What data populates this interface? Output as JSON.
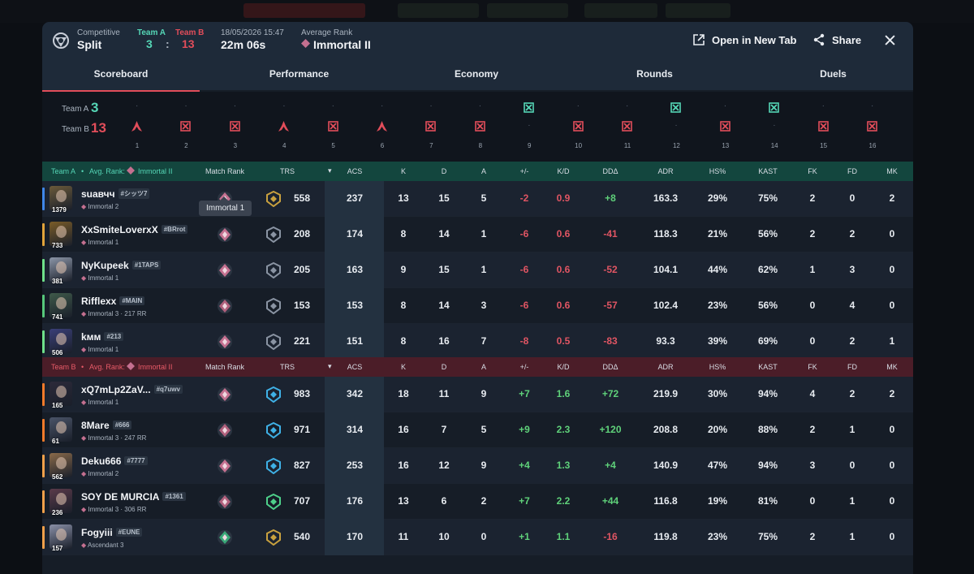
{
  "header": {
    "mode": "Competitive",
    "map": "Split",
    "team_a_label": "Team A",
    "team_b_label": "Team B",
    "team_a_score": "3",
    "team_b_score": "13",
    "score_sep": ":",
    "date": "18/05/2026 15:47",
    "duration": "22m 06s",
    "avg_rank_label": "Average Rank",
    "avg_rank": "Immortal II",
    "open_new_tab": "Open in New Tab",
    "share": "Share"
  },
  "tabs": [
    "Scoreboard",
    "Performance",
    "Economy",
    "Rounds",
    "Duels"
  ],
  "rounds": {
    "team_a_label": "Team A",
    "team_a_score": "3",
    "team_b_label": "Team B",
    "team_b_score": "13",
    "results": [
      {
        "n": "1",
        "winner": "B",
        "icon": "defuse-icon"
      },
      {
        "n": "2",
        "winner": "B",
        "icon": "elimination-icon"
      },
      {
        "n": "3",
        "winner": "B",
        "icon": "elimination-icon"
      },
      {
        "n": "4",
        "winner": "B",
        "icon": "defuse-icon"
      },
      {
        "n": "5",
        "winner": "B",
        "icon": "elimination-icon"
      },
      {
        "n": "6",
        "winner": "B",
        "icon": "defuse-icon"
      },
      {
        "n": "7",
        "winner": "B",
        "icon": "elimination-icon"
      },
      {
        "n": "8",
        "winner": "B",
        "icon": "elimination-icon"
      },
      {
        "n": "9",
        "winner": "A",
        "icon": "elimination-icon"
      },
      {
        "n": "10",
        "winner": "B",
        "icon": "elimination-icon"
      },
      {
        "n": "11",
        "winner": "B",
        "icon": "elimination-icon"
      },
      {
        "n": "12",
        "winner": "A",
        "icon": "elimination-icon"
      },
      {
        "n": "13",
        "winner": "B",
        "icon": "elimination-icon"
      },
      {
        "n": "14",
        "winner": "A",
        "icon": "elimination-icon"
      },
      {
        "n": "15",
        "winner": "B",
        "icon": "elimination-icon"
      },
      {
        "n": "16",
        "winner": "B",
        "icon": "elimination-icon"
      }
    ]
  },
  "columns": [
    "Match Rank",
    "TRS",
    "ACS",
    "K",
    "D",
    "A",
    "+/-",
    "K/D",
    "DDΔ",
    "ADR",
    "HS%",
    "KAST",
    "FK",
    "FD",
    "MK"
  ],
  "team_a": {
    "title": "Team A",
    "avg_rank_prefix": "Avg. Rank:",
    "avg_rank": "Immortal II",
    "color": "#16463e",
    "players": [
      {
        "name": "suaвчч",
        "tag": "#シッツ7",
        "rank": "Immortal 2",
        "level": "1379",
        "bar": "#3f86e8",
        "avatar": "#6b5a3a",
        "trs": "558",
        "acs": "237",
        "k": "13",
        "d": "15",
        "a": "5",
        "pm": "-2",
        "kd": "0.9",
        "dd": "+8",
        "adr": "163.3",
        "hs": "29%",
        "kast": "75%",
        "fk": "2",
        "fd": "0",
        "mk": "2",
        "badge": "#c9a13f",
        "mrank": "#c47090"
      },
      {
        "name": "XxSmiteLoverxX",
        "tag": "#BRrot",
        "rank": "Immortal 1",
        "level": "733",
        "bar": "#e0a33a",
        "avatar": "#7a5c28",
        "trs": "208",
        "acs": "174",
        "k": "8",
        "d": "14",
        "a": "1",
        "pm": "-6",
        "kd": "0.6",
        "dd": "-41",
        "adr": "118.3",
        "hs": "21%",
        "kast": "56%",
        "fk": "2",
        "fd": "2",
        "mk": "0",
        "badge": "#8a94a3",
        "mrank": "#c47090"
      },
      {
        "name": "NyKupeek",
        "tag": "#1TAPS",
        "rank": "Immortal 1",
        "level": "381",
        "bar": "#6ee08a",
        "avatar": "#8c96a8",
        "trs": "205",
        "acs": "163",
        "k": "9",
        "d": "15",
        "a": "1",
        "pm": "-6",
        "kd": "0.6",
        "dd": "-52",
        "adr": "104.1",
        "hs": "44%",
        "kast": "62%",
        "fk": "1",
        "fd": "3",
        "mk": "0",
        "badge": "#8a94a3",
        "mrank": "#c47090"
      },
      {
        "name": "Rifflexx",
        "tag": "#MAIN",
        "rank": "Immortal 3 · 217 RR",
        "level": "741",
        "bar": "#56c77b",
        "avatar": "#3f5a4a",
        "trs": "153",
        "acs": "153",
        "k": "8",
        "d": "14",
        "a": "3",
        "pm": "-6",
        "kd": "0.6",
        "dd": "-57",
        "adr": "102.4",
        "hs": "23%",
        "kast": "56%",
        "fk": "0",
        "fd": "4",
        "mk": "0",
        "badge": "#8a94a3",
        "mrank": "#b0607c"
      },
      {
        "name": "kмм",
        "tag": "#213",
        "rank": "Immortal 1",
        "level": "506",
        "bar": "#6ee08a",
        "avatar": "#3a3f78",
        "trs": "221",
        "acs": "151",
        "k": "8",
        "d": "16",
        "a": "7",
        "pm": "-8",
        "kd": "0.5",
        "dd": "-83",
        "adr": "93.3",
        "hs": "39%",
        "kast": "69%",
        "fk": "0",
        "fd": "2",
        "mk": "1",
        "badge": "#8a94a3",
        "mrank": "#c47090"
      }
    ]
  },
  "team_b": {
    "title": "Team B",
    "avg_rank_prefix": "Avg. Rank:",
    "avg_rank": "Immortal II",
    "color": "#4b1d28",
    "players": [
      {
        "name": "xQ7mLp2ZaV...",
        "tag": "#q7uwv",
        "rank": "Immortal 1",
        "level": "165",
        "bar": "#f07a2a",
        "avatar": "#2c2a3a",
        "trs": "983",
        "acs": "342",
        "k": "18",
        "d": "11",
        "a": "9",
        "pm": "+7",
        "kd": "1.6",
        "dd": "+72",
        "adr": "219.9",
        "hs": "30%",
        "kast": "94%",
        "fk": "4",
        "fd": "2",
        "mk": "2",
        "badge": "#3fb1e6",
        "mrank": "#c47090"
      },
      {
        "name": "8Mare",
        "tag": "#666",
        "rank": "Immortal 3 · 247 RR",
        "level": "61",
        "bar": "#f07a2a",
        "avatar": "#4a5468",
        "trs": "971",
        "acs": "314",
        "k": "16",
        "d": "7",
        "a": "5",
        "pm": "+9",
        "kd": "2.3",
        "dd": "+120",
        "adr": "208.8",
        "hs": "20%",
        "kast": "88%",
        "fk": "2",
        "fd": "1",
        "mk": "0",
        "badge": "#3fb1e6",
        "mrank": "#b0607c"
      },
      {
        "name": "Deku666",
        "tag": "#7777",
        "rank": "Immortal 2",
        "level": "562",
        "bar": "#f0a04a",
        "avatar": "#8a6a4a",
        "trs": "827",
        "acs": "253",
        "k": "16",
        "d": "12",
        "a": "9",
        "pm": "+4",
        "kd": "1.3",
        "dd": "+4",
        "adr": "140.9",
        "hs": "47%",
        "kast": "94%",
        "fk": "3",
        "fd": "0",
        "mk": "0",
        "badge": "#3fb1e6",
        "mrank": "#c47090"
      },
      {
        "name": "SOY DE MURCIA",
        "tag": "#1361",
        "rank": "Immortal 3 · 306 RR",
        "level": "236",
        "bar": "#f0a04a",
        "avatar": "#5a3a4a",
        "trs": "707",
        "acs": "176",
        "k": "13",
        "d": "6",
        "a": "2",
        "pm": "+7",
        "kd": "2.2",
        "dd": "+44",
        "adr": "116.8",
        "hs": "19%",
        "kast": "81%",
        "fk": "0",
        "fd": "1",
        "mk": "0",
        "badge": "#4ed08a",
        "mrank": "#b0607c"
      },
      {
        "name": "Fogyiii",
        "tag": "#EUNE",
        "rank": "Ascendant 3",
        "level": "157",
        "bar": "#f0a04a",
        "avatar": "#8a90a8",
        "trs": "540",
        "acs": "170",
        "k": "11",
        "d": "10",
        "a": "0",
        "pm": "+1",
        "kd": "1.1",
        "dd": "-16",
        "adr": "119.8",
        "hs": "23%",
        "kast": "75%",
        "fk": "2",
        "fd": "1",
        "mk": "0",
        "badge": "#c9a13f",
        "mrank": "#3aa878"
      }
    ]
  },
  "tooltip": "Immortal 1",
  "colors": {
    "team_a": "#55d6b6",
    "team_b": "#e14d5a",
    "accent": "#e14d5a",
    "positive": "#5fd17a",
    "negative": "#e05563"
  }
}
